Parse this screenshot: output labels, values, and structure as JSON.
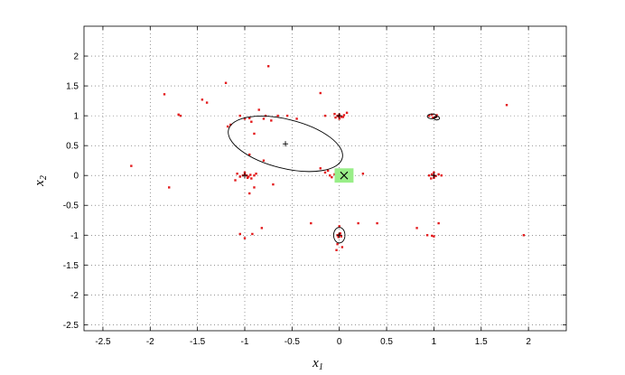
{
  "chart_data": {
    "type": "scatter",
    "xlabel": "x",
    "xlabel_sub": "1",
    "ylabel": "x",
    "ylabel_sub": "2",
    "xlim": [
      -2.7,
      2.4
    ],
    "ylim": [
      -2.6,
      2.5
    ],
    "xticks": [
      -2.5,
      -2,
      -1.5,
      -1,
      -0.5,
      0,
      0.5,
      1,
      1.5,
      2
    ],
    "yticks": [
      -2.5,
      -2,
      -1.5,
      -1,
      -0.5,
      0,
      0.5,
      1,
      1.5,
      2
    ],
    "grid": true,
    "colors": {
      "points": "#e31a1c",
      "ellipse": "#000000",
      "highlight": "#99ee88",
      "marker": "#000000"
    },
    "points": [
      [
        -2.2,
        0.16
      ],
      [
        -1.85,
        1.36
      ],
      [
        -1.8,
        -0.2
      ],
      [
        -1.7,
        1.02
      ],
      [
        -1.68,
        1.0
      ],
      [
        -1.45,
        1.27
      ],
      [
        -1.4,
        1.22
      ],
      [
        -1.2,
        1.55
      ],
      [
        -1.18,
        0.82
      ],
      [
        -1.15,
        0.85
      ],
      [
        -1.05,
        1.0
      ],
      [
        -1.0,
        0.95
      ],
      [
        -0.95,
        0.96
      ],
      [
        -0.93,
        0.9
      ],
      [
        -0.9,
        0.7
      ],
      [
        -0.85,
        1.1
      ],
      [
        -0.8,
        0.95
      ],
      [
        -0.78,
        1.0
      ],
      [
        -0.75,
        1.83
      ],
      [
        -0.72,
        0.92
      ],
      [
        -0.65,
        1.0
      ],
      [
        -0.55,
        1.0
      ],
      [
        -0.45,
        0.95
      ],
      [
        -0.2,
        1.38
      ],
      [
        -0.15,
        1.0
      ],
      [
        -1.02,
        0.0
      ],
      [
        -1.0,
        0.02
      ],
      [
        -0.98,
        0.0
      ],
      [
        -0.96,
        -0.02
      ],
      [
        -0.94,
        0.01
      ],
      [
        -1.05,
        -0.02
      ],
      [
        -0.93,
        -0.05
      ],
      [
        -1.08,
        0.03
      ],
      [
        -1.0,
        0.05
      ],
      [
        -0.97,
        -0.04
      ],
      [
        -0.9,
        0.0
      ],
      [
        -0.88,
        0.03
      ],
      [
        -1.1,
        -0.08
      ],
      [
        -0.95,
        0.35
      ],
      [
        -0.95,
        -0.3
      ],
      [
        -0.9,
        -0.2
      ],
      [
        -0.8,
        0.25
      ],
      [
        -0.7,
        -0.15
      ],
      [
        -0.2,
        0.12
      ],
      [
        -0.15,
        0.05
      ],
      [
        -0.1,
        0.0
      ],
      [
        -0.05,
        0.02
      ],
      [
        -0.03,
        -0.03
      ],
      [
        0.0,
        0.0
      ],
      [
        0.02,
        0.03
      ],
      [
        -0.08,
        -0.03
      ],
      [
        -0.12,
        0.08
      ],
      [
        0.05,
        0.02
      ],
      [
        0.1,
        0.0
      ],
      [
        0.25,
        0.03
      ],
      [
        -0.02,
        1.0
      ],
      [
        0.0,
        1.02
      ],
      [
        0.02,
        0.98
      ],
      [
        0.05,
        1.01
      ],
      [
        -0.04,
        0.97
      ],
      [
        0.0,
        0.95
      ],
      [
        -0.05,
        1.03
      ],
      [
        0.08,
        1.05
      ],
      [
        0.04,
        0.98
      ],
      [
        -0.01,
        0.99
      ],
      [
        -0.02,
        -1.0
      ],
      [
        0.0,
        -0.98
      ],
      [
        0.02,
        -1.02
      ],
      [
        0.01,
        -0.97
      ],
      [
        -0.01,
        -1.03
      ],
      [
        0.0,
        -0.85
      ],
      [
        -0.02,
        -1.15
      ],
      [
        0.03,
        -1.2
      ],
      [
        -0.03,
        -1.25
      ],
      [
        0.2,
        -0.8
      ],
      [
        0.4,
        -0.8
      ],
      [
        -0.3,
        -0.8
      ],
      [
        -0.82,
        -0.88
      ],
      [
        -1.05,
        -0.98
      ],
      [
        -1.0,
        -1.05
      ],
      [
        -0.92,
        -0.98
      ],
      [
        0.82,
        -0.88
      ],
      [
        0.93,
        -1.0
      ],
      [
        1.0,
        -1.02
      ],
      [
        0.98,
        -1.01
      ],
      [
        1.05,
        -0.8
      ],
      [
        1.0,
        0.0
      ],
      [
        0.98,
        0.02
      ],
      [
        1.02,
        -0.01
      ],
      [
        0.95,
        0.0
      ],
      [
        1.05,
        0.02
      ],
      [
        1.0,
        -0.04
      ],
      [
        0.97,
        -0.05
      ],
      [
        1.08,
        0.0
      ],
      [
        1.0,
        0.05
      ],
      [
        0.95,
        1.0
      ],
      [
        0.98,
        1.02
      ],
      [
        1.02,
        0.98
      ],
      [
        0.99,
        0.97
      ],
      [
        1.03,
        1.01
      ],
      [
        1.77,
        1.18
      ],
      [
        1.95,
        -1.0
      ]
    ],
    "ellipses": [
      {
        "center": [
          -0.57,
          0.53
        ],
        "rx": 0.62,
        "ry": 0.41,
        "angle_deg": -14
      },
      {
        "center": [
          0.0,
          -1.0
        ],
        "rx": 0.06,
        "ry": 0.13,
        "angle_deg": 0
      },
      {
        "center": [
          0.98,
          0.99
        ],
        "rx": 0.05,
        "ry": 0.04,
        "angle_deg": 0
      },
      {
        "center": [
          1.03,
          0.96
        ],
        "rx": 0.03,
        "ry": 0.03,
        "angle_deg": 0
      }
    ],
    "plus_markers": [
      [
        -0.57,
        0.53
      ],
      [
        0.0,
        1.0
      ],
      [
        -1.0,
        0.0
      ],
      [
        0.0,
        -1.0
      ],
      [
        1.0,
        0.0
      ]
    ],
    "highlight": {
      "center": [
        0.05,
        0.0
      ],
      "half_width": 0.1,
      "half_height": 0.12
    },
    "x_marker": [
      0.05,
      0.0
    ]
  }
}
